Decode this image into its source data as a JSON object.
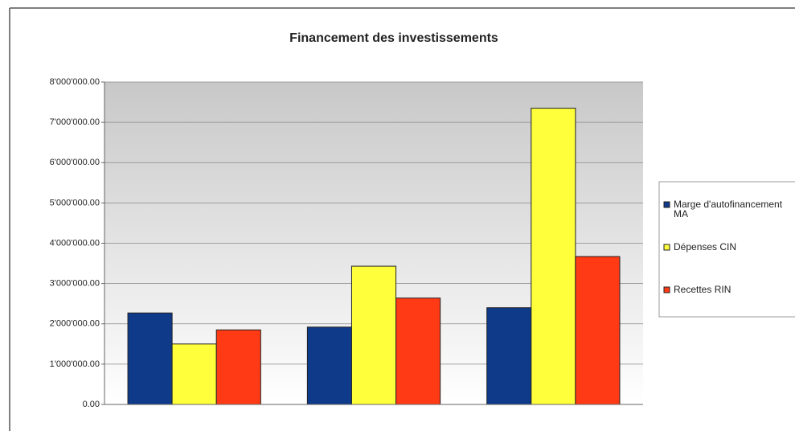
{
  "chart_data": {
    "type": "bar",
    "title": "Financement des investissements",
    "categories": [
      null,
      null,
      null
    ],
    "series": [
      {
        "name": "Marge d'autofinancement MA",
        "color": "#0f3a8a",
        "values": [
          2270000,
          1920000,
          2400000
        ]
      },
      {
        "name": "Dépenses CIN",
        "color": "#ffff3c",
        "values": [
          1500000,
          3430000,
          7350000
        ]
      },
      {
        "name": "Recettes RIN",
        "color": "#ff3a14",
        "values": [
          1850000,
          2640000,
          3670000
        ]
      }
    ],
    "ylim": [
      0,
      8000000
    ],
    "yticks": [
      {
        "value": 0,
        "label": "0.00"
      },
      {
        "value": 1000000,
        "label": "1'000'000.00"
      },
      {
        "value": 2000000,
        "label": "2'000'000.00"
      },
      {
        "value": 3000000,
        "label": "3'000'000.00"
      },
      {
        "value": 4000000,
        "label": "4'000'000.00"
      },
      {
        "value": 5000000,
        "label": "5'000'000.00"
      },
      {
        "value": 6000000,
        "label": "6'000'000.00"
      },
      {
        "value": 7000000,
        "label": "7'000'000.00"
      },
      {
        "value": 8000000,
        "label": "8'000'000.00"
      }
    ],
    "grid": true,
    "legend": "right"
  }
}
